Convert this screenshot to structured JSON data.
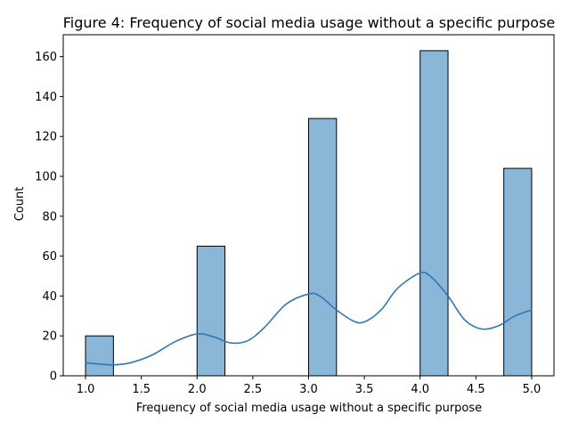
{
  "chart_data": {
    "type": "bar",
    "subtype": "histogram-with-kde",
    "title": "Figure 4: Frequency of social media usage without a specific purpose",
    "xlabel": "Frequency of social media usage without a specific purpose",
    "ylabel": "Count",
    "xlim": [
      0.8,
      5.2
    ],
    "ylim": [
      0,
      171
    ],
    "xticks": [
      1.0,
      1.5,
      2.0,
      2.5,
      3.0,
      3.5,
      4.0,
      4.5,
      5.0
    ],
    "xtick_labels": [
      "1.0",
      "1.5",
      "2.0",
      "2.5",
      "3.0",
      "3.5",
      "4.0",
      "4.5",
      "5.0"
    ],
    "yticks": [
      0,
      20,
      40,
      60,
      80,
      100,
      120,
      140,
      160
    ],
    "ytick_labels": [
      "0",
      "20",
      "40",
      "60",
      "80",
      "100",
      "120",
      "140",
      "160"
    ],
    "bin_width": 0.25,
    "bars": [
      {
        "x0": 1.0,
        "x1": 1.25,
        "value": 20
      },
      {
        "x0": 2.0,
        "x1": 2.25,
        "value": 65
      },
      {
        "x0": 3.0,
        "x1": 3.25,
        "value": 129
      },
      {
        "x0": 4.0,
        "x1": 4.25,
        "value": 163
      },
      {
        "x0": 4.75,
        "x1": 5.0,
        "value": 104
      }
    ],
    "kde": {
      "x": [
        1.0,
        1.1,
        1.25,
        1.4,
        1.6,
        1.8,
        2.0,
        2.15,
        2.3,
        2.45,
        2.6,
        2.8,
        3.0,
        3.1,
        3.25,
        3.4,
        3.5,
        3.65,
        3.8,
        4.0,
        4.1,
        4.25,
        4.4,
        4.55,
        4.7,
        4.85,
        5.0
      ],
      "y": [
        6.5,
        6,
        5.5,
        6.5,
        10.5,
        17,
        21,
        19.5,
        16.5,
        17.5,
        24,
        36,
        41,
        40,
        33,
        27.5,
        27,
        33,
        44,
        51.5,
        49.5,
        40,
        28,
        23.5,
        25,
        30,
        33
      ]
    },
    "colors": {
      "bar_fill": "#8ab6d8",
      "bar_edge": "#000000",
      "kde_line": "#2f78b4"
    },
    "grid": false,
    "legend": "none"
  }
}
